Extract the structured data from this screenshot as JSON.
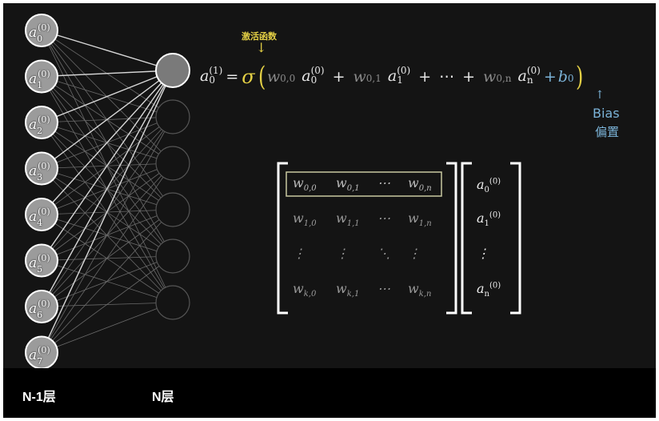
{
  "layers": {
    "prev_label": "N-1层",
    "current_label": "N层",
    "prev_nodes": [
      {
        "base": "a",
        "sub": "0",
        "sup": "(0)"
      },
      {
        "base": "a",
        "sub": "1",
        "sup": "(0)"
      },
      {
        "base": "a",
        "sub": "2",
        "sup": "(0)"
      },
      {
        "base": "a",
        "sub": "3",
        "sup": "(0)"
      },
      {
        "base": "a",
        "sub": "4",
        "sup": "(0)"
      },
      {
        "base": "a",
        "sub": "5",
        "sup": "(0)"
      },
      {
        "base": "a",
        "sub": "6",
        "sup": "(0)"
      },
      {
        "base": "a",
        "sub": "7",
        "sup": "(0)"
      }
    ],
    "current_node_count": 6
  },
  "equation": {
    "lhs": {
      "base": "a",
      "sub": "0",
      "sup": "(1)"
    },
    "equals": "=",
    "function": "σ",
    "terms": [
      {
        "w": "w",
        "w_sub": "0,0",
        "a": "a",
        "a_sub": "0",
        "a_sup": "(0)"
      },
      {
        "w": "w",
        "w_sub": "0,1",
        "a": "a",
        "a_sub": "1",
        "a_sup": "(0)"
      },
      {
        "w": "w",
        "w_sub": "0,n",
        "a": "a",
        "a_sub": "n",
        "a_sup": "(0)"
      }
    ],
    "plus": "+",
    "ellipsis": "⋯",
    "bias": {
      "base": "b",
      "sub": "0"
    },
    "activation_label": "激活函数",
    "bias_label_en": "Bias",
    "bias_label_zh": "偏置"
  },
  "matrix": {
    "rows": [
      [
        {
          "b": "w",
          "s": "0,0"
        },
        {
          "b": "w",
          "s": "0,1"
        },
        {
          "b": "⋯",
          "s": ""
        },
        {
          "b": "w",
          "s": "0,n"
        }
      ],
      [
        {
          "b": "w",
          "s": "1,0"
        },
        {
          "b": "w",
          "s": "1,1"
        },
        {
          "b": "⋯",
          "s": ""
        },
        {
          "b": "w",
          "s": "1,n"
        }
      ],
      [
        {
          "b": "⋮",
          "s": ""
        },
        {
          "b": "⋮",
          "s": ""
        },
        {
          "b": "⋱",
          "s": ""
        },
        {
          "b": "⋮",
          "s": ""
        }
      ],
      [
        {
          "b": "w",
          "s": "k,0"
        },
        {
          "b": "w",
          "s": "k,1"
        },
        {
          "b": "⋯",
          "s": ""
        },
        {
          "b": "w",
          "s": "k,n"
        }
      ]
    ],
    "vector": [
      {
        "base": "a",
        "sub": "0",
        "sup": "(0)"
      },
      {
        "base": "a",
        "sub": "1",
        "sup": "(0)"
      },
      {
        "base": "⋮",
        "sub": "",
        "sup": ""
      },
      {
        "base": "a",
        "sub": "n",
        "sup": "(0)"
      }
    ]
  },
  "colors": {
    "background": "#141414",
    "activation": "#e3cf45",
    "bias": "#7bb3d8",
    "weight_text": "#9a9a9a"
  }
}
